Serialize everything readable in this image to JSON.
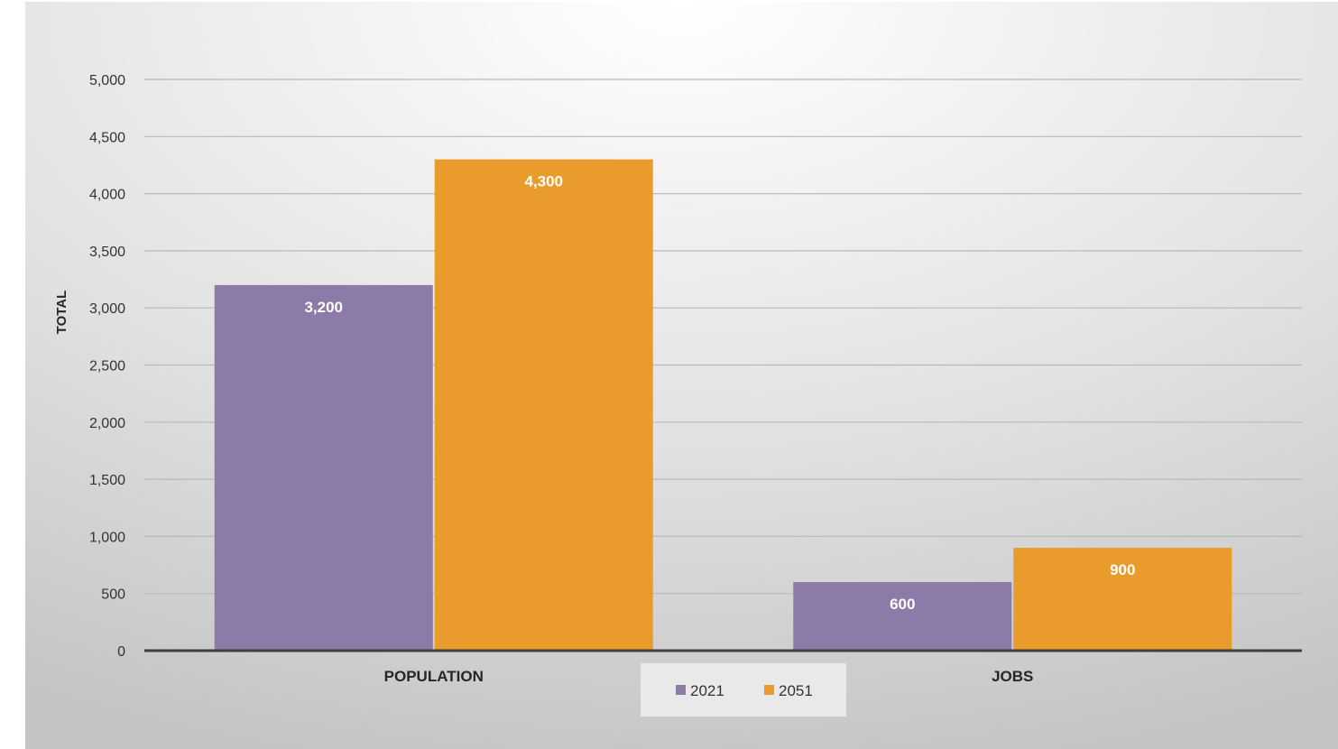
{
  "chart_data": {
    "type": "bar",
    "categories": [
      "POPULATION",
      "JOBS"
    ],
    "series": [
      {
        "name": "2021",
        "values": [
          3200,
          600
        ],
        "color": "#8C7BA8"
      },
      {
        "name": "2051",
        "values": [
          4300,
          900
        ],
        "color": "#E99C2C"
      }
    ],
    "data_labels": [
      [
        "3,200",
        "600"
      ],
      [
        "4,300",
        "900"
      ]
    ],
    "title": "",
    "xlabel": "",
    "ylabel": "TOTAL",
    "ylim": [
      0,
      5000
    ],
    "yticks": [
      0,
      500,
      1000,
      1500,
      2000,
      2500,
      3000,
      3500,
      4000,
      4500,
      5000
    ],
    "ytick_labels": [
      "0",
      "500",
      "1,000",
      "1,500",
      "2,000",
      "2,500",
      "3,000",
      "3,500",
      "4,000",
      "4,500",
      "5,000"
    ],
    "grid": true,
    "legend_position": "bottom"
  }
}
